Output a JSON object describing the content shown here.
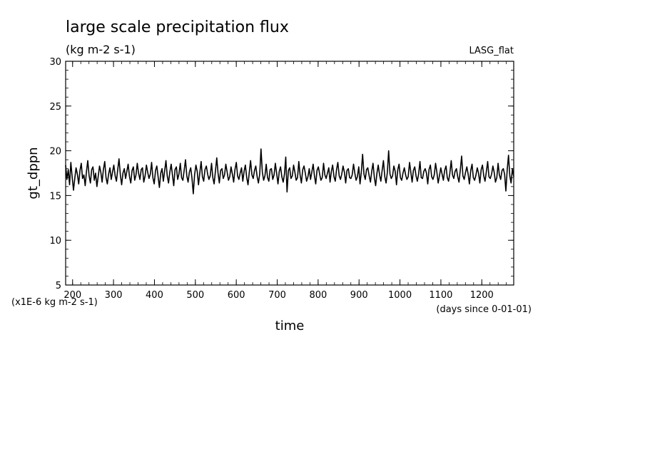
{
  "chart_data": {
    "type": "line",
    "title": "large scale precipitation flux",
    "subtitle": "(kg m-2 s-1)",
    "annotation_right": "LASG_flat",
    "xlabel": "time",
    "xunits": "(days since 0-01-01)",
    "ylabel": "gt_dppn",
    "yunits": "(x1E-6 kg m-2 s-1)",
    "xlim": [
      183,
      1278
    ],
    "ylim": [
      5,
      30
    ],
    "x_ticks": [
      200,
      300,
      400,
      500,
      600,
      700,
      800,
      900,
      1000,
      1100,
      1200
    ],
    "y_ticks": [
      5,
      10,
      15,
      20,
      25,
      30
    ],
    "x_step": 2.5,
    "series": [
      {
        "color": "#000000",
        "values": [
          18.4,
          16.8,
          17.9,
          16.2,
          18.7,
          17.1,
          15.6,
          16.9,
          18.1,
          17.4,
          16.3,
          17.8,
          18.6,
          16.9,
          17.3,
          16.1,
          17.7,
          18.9,
          17.2,
          16.4,
          17.9,
          18.2,
          16.7,
          17.5,
          16.0,
          17.1,
          18.3,
          17.6,
          16.5,
          17.9,
          18.8,
          17.0,
          16.3,
          17.4,
          18.1,
          16.8,
          17.6,
          18.4,
          17.2,
          16.6,
          17.9,
          19.1,
          17.3,
          16.2,
          17.5,
          18.0,
          16.9,
          17.7,
          18.5,
          17.1,
          16.4,
          17.8,
          18.2,
          16.7,
          17.3,
          18.6,
          17.5,
          16.8,
          17.9,
          18.1,
          16.5,
          17.2,
          18.4,
          17.6,
          16.9,
          17.4,
          18.7,
          17.0,
          16.3,
          17.8,
          18.3,
          17.1,
          15.9,
          17.5,
          18.0,
          16.6,
          17.7,
          18.9,
          17.2,
          16.4,
          17.6,
          18.5,
          17.3,
          16.1,
          17.9,
          18.2,
          16.8,
          17.4,
          18.6,
          17.0,
          16.7,
          17.8,
          19.0,
          17.2,
          16.5,
          17.6,
          18.1,
          16.9,
          15.2,
          17.3,
          18.4,
          17.7,
          16.2,
          17.5,
          18.8,
          17.1,
          16.6,
          17.9,
          18.3,
          17.4,
          16.8,
          17.2,
          18.6,
          17.0,
          16.3,
          17.7,
          19.2,
          17.5,
          16.4,
          17.8,
          18.0,
          16.9,
          17.3,
          18.5,
          17.6,
          16.7,
          17.1,
          18.2,
          17.4,
          16.5,
          17.9,
          18.7,
          17.2,
          16.8,
          17.5,
          18.1,
          16.6,
          17.7,
          18.4,
          17.0,
          16.2,
          17.6,
          18.9,
          17.3,
          16.9,
          17.8,
          18.3,
          17.1,
          16.4,
          17.4,
          20.2,
          17.6,
          16.7,
          17.2,
          18.5,
          17.0,
          16.6,
          17.9,
          18.0,
          16.8,
          17.3,
          18.6,
          17.5,
          16.3,
          17.7,
          18.2,
          17.1,
          16.5,
          17.4,
          19.3,
          15.4,
          17.8,
          18.1,
          16.9,
          17.2,
          18.4,
          17.6,
          16.7,
          17.0,
          18.8,
          17.3,
          16.4,
          17.9,
          18.3,
          17.5,
          16.6,
          17.1,
          18.0,
          16.8,
          17.6,
          18.5,
          17.2,
          16.3,
          17.8,
          18.2,
          17.4,
          16.7,
          17.0,
          18.6,
          17.3,
          16.9,
          17.5,
          18.1,
          16.5,
          17.7,
          18.4,
          17.1,
          16.6,
          17.9,
          18.7,
          17.2,
          16.8,
          17.4,
          18.3,
          17.6,
          16.4,
          17.8,
          18.0,
          17.0,
          16.9,
          17.3,
          18.5,
          17.5,
          16.7,
          17.1,
          18.2,
          16.3,
          17.6,
          19.6,
          17.4,
          16.8,
          17.9,
          18.1,
          17.2,
          16.5,
          17.7,
          18.6,
          17.0,
          16.1,
          17.5,
          18.4,
          17.3,
          16.6,
          17.8,
          18.9,
          17.1,
          16.4,
          17.6,
          20.0,
          17.4,
          16.9,
          17.2,
          18.3,
          17.7,
          16.2,
          17.9,
          18.5,
          17.0,
          16.7,
          17.5,
          18.1,
          17.3,
          16.8,
          17.1,
          18.7,
          17.6,
          16.5,
          17.8,
          18.2,
          17.2,
          16.6,
          17.4,
          18.8,
          17.0,
          16.9,
          17.7,
          18.0,
          17.5,
          16.3,
          17.9,
          18.4,
          17.1,
          16.8,
          17.3,
          18.6,
          17.6,
          16.4,
          17.2,
          18.1,
          17.4,
          16.7,
          17.8,
          18.3,
          17.0,
          16.6,
          17.5,
          18.9,
          17.3,
          16.9,
          17.7,
          18.0,
          17.1,
          16.5,
          17.9,
          19.4,
          17.2,
          16.8,
          17.6,
          18.2,
          17.4,
          16.3,
          17.8,
          18.5,
          17.0,
          16.7,
          17.3,
          18.1,
          17.5,
          16.4,
          17.9,
          18.4,
          17.2,
          16.6,
          17.7,
          18.8,
          17.1,
          16.9,
          17.4,
          18.3,
          17.6,
          16.5,
          17.0,
          18.6,
          17.3,
          16.8,
          17.8,
          18.0,
          17.4,
          15.5,
          17.9,
          19.5,
          17.2,
          16.4,
          18.0,
          17.1
        ]
      }
    ]
  }
}
